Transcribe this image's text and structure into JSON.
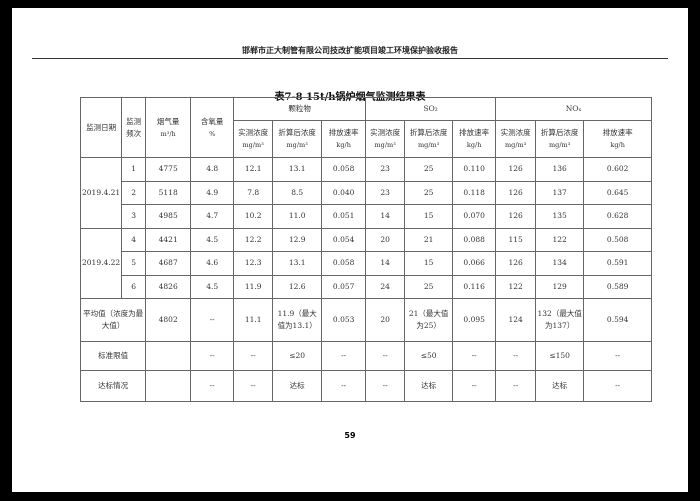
{
  "header": "邯郸市正大制管有限公司技改扩能项目竣工环境保护验收报告",
  "table_title": "表7-8    15t/h锅炉烟气监测结果表",
  "columns": {
    "date": "监测日期",
    "freq": "监测频次",
    "flue": "烟气量",
    "flue_unit": "m³/h",
    "o2": "含氧量",
    "o2_unit": "%",
    "groups": [
      "颗粒物",
      "SO₂",
      "NOₓ"
    ],
    "sub": [
      "实测浓度",
      "折算后浓度",
      "排放速率"
    ],
    "sub_units": [
      "mg/m³",
      "mg/m³",
      "kg/h"
    ]
  },
  "dates": [
    "2019.4.21",
    "2019.4.22"
  ],
  "rows": [
    [
      "1",
      "4775",
      "4.8",
      "12.1",
      "13.1",
      "0.058",
      "23",
      "25",
      "0.110",
      "126",
      "136",
      "0.602"
    ],
    [
      "2",
      "5118",
      "4.9",
      "7.8",
      "8.5",
      "0.040",
      "23",
      "25",
      "0.118",
      "126",
      "137",
      "0.645"
    ],
    [
      "3",
      "4985",
      "4.7",
      "10.2",
      "11.0",
      "0.051",
      "14",
      "15",
      "0.070",
      "126",
      "135",
      "0.628"
    ],
    [
      "4",
      "4421",
      "4.5",
      "12.2",
      "12.9",
      "0.054",
      "20",
      "21",
      "0.088",
      "115",
      "122",
      "0.508"
    ],
    [
      "5",
      "4687",
      "4.6",
      "12.3",
      "13.1",
      "0.058",
      "14",
      "15",
      "0.066",
      "126",
      "134",
      "0.591"
    ],
    [
      "6",
      "4826",
      "4.5",
      "11.9",
      "12.6",
      "0.057",
      "24",
      "25",
      "0.116",
      "122",
      "129",
      "0.589"
    ]
  ],
  "avg": {
    "label": "平均值（浓度为最大值）",
    "values": [
      "4802",
      "--",
      "11.1",
      "11.9（最大值为13.1）",
      "0.053",
      "20",
      "21（最大值为25）",
      "0.095",
      "124",
      "132（最大值为137）",
      "0.594"
    ]
  },
  "limit": {
    "label": "标准限值",
    "values": [
      "",
      "--",
      "--",
      "≤20",
      "--",
      "--",
      "≤50",
      "--",
      "--",
      "≤150",
      "--"
    ]
  },
  "status": {
    "label": "达标情况",
    "values": [
      "",
      "--",
      "--",
      "达标",
      "--",
      "--",
      "达标",
      "--",
      "--",
      "达标",
      "--"
    ]
  },
  "page_number": "59"
}
